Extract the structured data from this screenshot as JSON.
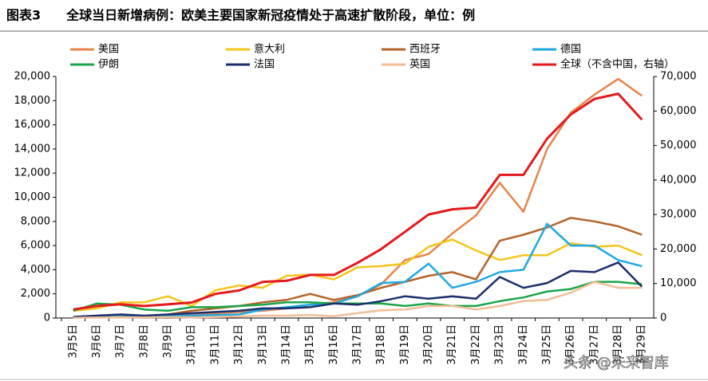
{
  "chart_data": {
    "type": "line",
    "title": "图表3　　全球当日新增病例：欧美主要国家新冠疫情处于高速扩散阶段，单位：例",
    "watermark": "头条 @未来智库",
    "categories": [
      "3月5日",
      "3月6日",
      "3月7日",
      "3月8日",
      "3月9日",
      "3月10日",
      "3月11日",
      "3月12日",
      "3月13日",
      "3月14日",
      "3月15日",
      "3月16日",
      "3月17日",
      "3月18日",
      "3月19日",
      "3月20日",
      "3月21日",
      "3月22日",
      "3月23日",
      "3月24日",
      "3月25日",
      "3月26日",
      "3月27日",
      "3月28日",
      "3月29日"
    ],
    "series": [
      {
        "name": "美国",
        "color": "#e8834a",
        "values": [
          50,
          80,
          100,
          150,
          250,
          300,
          400,
          500,
          600,
          800,
          1100,
          1300,
          1800,
          2800,
          4800,
          5300,
          7000,
          8500,
          11200,
          8800,
          14000,
          17000,
          18500,
          19800,
          18400
        ]
      },
      {
        "name": "意大利",
        "color": "#f5c518",
        "values": [
          600,
          800,
          1300,
          1300,
          1800,
          1000,
          2300,
          2700,
          2500,
          3500,
          3600,
          3200,
          4200,
          4300,
          4500,
          5900,
          6500,
          5600,
          4800,
          5200,
          5200,
          6200,
          5900,
          6000,
          5200
        ]
      },
      {
        "name": "西班牙",
        "color": "#b5632a",
        "values": [
          50,
          50,
          100,
          100,
          300,
          600,
          800,
          1000,
          1300,
          1500,
          2000,
          1500,
          1900,
          2500,
          3000,
          3500,
          3800,
          3200,
          6400,
          6900,
          7500,
          8300,
          8000,
          7600,
          6900
        ]
      },
      {
        "name": "德国",
        "color": "#1fa9e1",
        "values": [
          50,
          50,
          100,
          100,
          150,
          200,
          250,
          300,
          700,
          900,
          1100,
          1200,
          1800,
          2900,
          3000,
          4500,
          2500,
          3000,
          3800,
          4000,
          7800,
          6000,
          6000,
          4800,
          4300
        ]
      },
      {
        "name": "伊朗",
        "color": "#1aa54a",
        "values": [
          600,
          1200,
          1100,
          700,
          600,
          900,
          900,
          1000,
          1100,
          1300,
          1300,
          1200,
          1200,
          1200,
          1000,
          1200,
          1000,
          1000,
          1400,
          1700,
          2200,
          2400,
          3000,
          3000,
          2800
        ]
      },
      {
        "name": "法国",
        "color": "#1a2f6b",
        "values": [
          100,
          200,
          300,
          200,
          300,
          400,
          500,
          600,
          800,
          800,
          900,
          1200,
          1100,
          1400,
          1800,
          1600,
          1800,
          1600,
          3400,
          2500,
          2900,
          3900,
          3800,
          4600,
          2600
        ]
      },
      {
        "name": "英国",
        "color": "#f2bd97",
        "values": [
          20,
          50,
          50,
          60,
          70,
          50,
          80,
          130,
          200,
          200,
          250,
          150,
          400,
          650,
          700,
          1000,
          1000,
          700,
          1000,
          1400,
          1500,
          2100,
          3000,
          2500,
          2500
        ]
      },
      {
        "name": "全球（不含中国，右轴）",
        "color": "#e31a1c",
        "axis": "y2",
        "values": [
          2500,
          3500,
          4000,
          3500,
          4000,
          4500,
          7000,
          8000,
          10500,
          10800,
          12500,
          12500,
          16000,
          20000,
          25000,
          30000,
          31500,
          32000,
          41500,
          41500,
          52000,
          59000,
          63500,
          65000,
          57500
        ]
      }
    ],
    "ylim": [
      0,
      20000
    ],
    "yticks": [
      0,
      {
        "value": 2000,
        "label": "2,000"
      },
      {
        "value": 4000,
        "label": "4,000"
      },
      {
        "value": 6000,
        "label": "6,000"
      },
      {
        "value": 8000,
        "label": "8,000"
      },
      {
        "value": 10000,
        "label": "10,000"
      },
      {
        "value": 12000,
        "label": "12,000"
      },
      {
        "value": 14000,
        "label": "14,000"
      },
      {
        "value": 16000,
        "label": "16,000"
      },
      {
        "value": 18000,
        "label": "18,000"
      },
      {
        "value": 20000,
        "label": "20,000"
      }
    ],
    "y2lim": [
      0,
      70000
    ],
    "y2ticks": [
      0,
      {
        "value": 10000,
        "label": "10,000"
      },
      {
        "value": 20000,
        "label": "20,000"
      },
      {
        "value": 30000,
        "label": "30,000"
      },
      {
        "value": 40000,
        "label": "40,000"
      },
      {
        "value": 50000,
        "label": "50,000"
      },
      {
        "value": 60000,
        "label": "60,000"
      },
      {
        "value": 70000,
        "label": "70,000"
      }
    ],
    "grid": false,
    "legend": "top"
  }
}
